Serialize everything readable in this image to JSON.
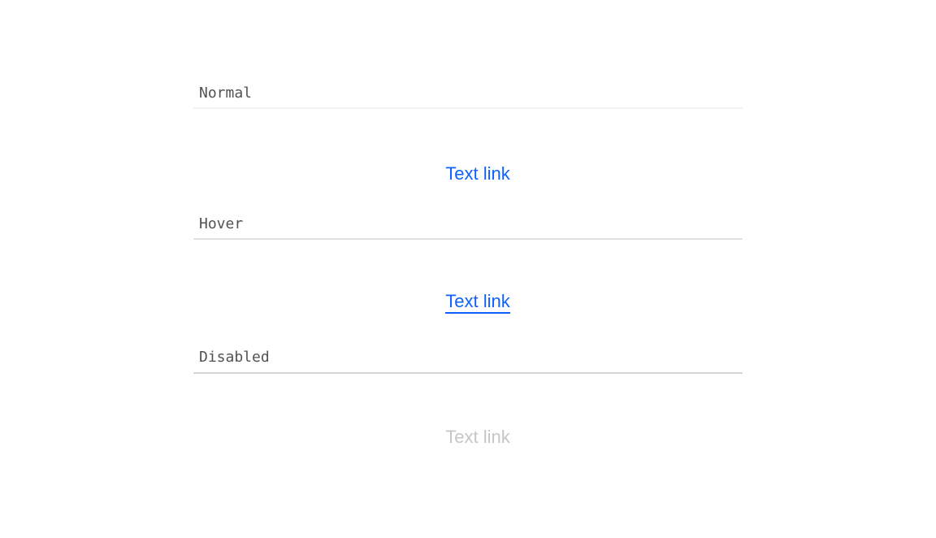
{
  "states": [
    {
      "label": "Normal",
      "link_text": "Text link",
      "link_color": "#0f62fe",
      "rule_color": "#f2f2f2"
    },
    {
      "label": "Hover",
      "link_text": "Text link",
      "link_color": "#0f62fe",
      "rule_color": "#e0e0e0"
    },
    {
      "label": "Disabled",
      "link_text": "Text link",
      "link_color": "#c6c6c6",
      "rule_color": "#d6d6d6"
    }
  ]
}
